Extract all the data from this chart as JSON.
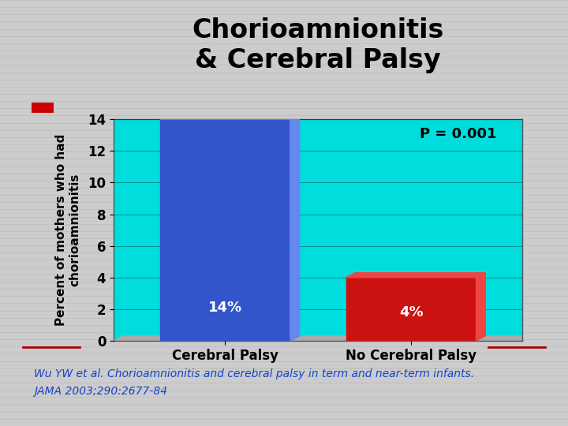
{
  "title": "Chorioamnionitis\n& Cerebral Palsy",
  "categories": [
    "Cerebral Palsy",
    "No Cerebral Palsy"
  ],
  "values": [
    14,
    4
  ],
  "bar_colors": [
    "#3355cc",
    "#cc1111"
  ],
  "bar_colors_light": [
    "#6688ee",
    "#ee4444"
  ],
  "bar_labels": [
    "14%",
    "4%"
  ],
  "ylabel": "Percent of mothers who had\nchorioamnionitis",
  "ylim": [
    0,
    14
  ],
  "yticks": [
    0,
    2,
    4,
    6,
    8,
    10,
    12,
    14
  ],
  "p_value_text": "P = 0.001",
  "plot_bg_color": "#00dddd",
  "grid_color": "#000000",
  "title_fontsize": 24,
  "axis_label_fontsize": 11,
  "tick_fontsize": 12,
  "bar_label_fontsize": 13,
  "p_value_fontsize": 13,
  "footnote_line1": "Wu YW et al. Chorioamnionitis and cerebral palsy in term and near-term infants.",
  "footnote_line2": "JAMA 2003;290:2677-84",
  "footnote_color": "#1144cc",
  "footnote_fontsize": 10,
  "outer_bg_color": "#cccccc",
  "title_color": "#000000",
  "bar_width": 0.35,
  "x_positions": [
    0.25,
    0.75
  ],
  "xlim": [
    0,
    1.0
  ],
  "floor_color": "#999999",
  "deco_line_color": "#aa0000",
  "deco_square_color": "#cc0000"
}
